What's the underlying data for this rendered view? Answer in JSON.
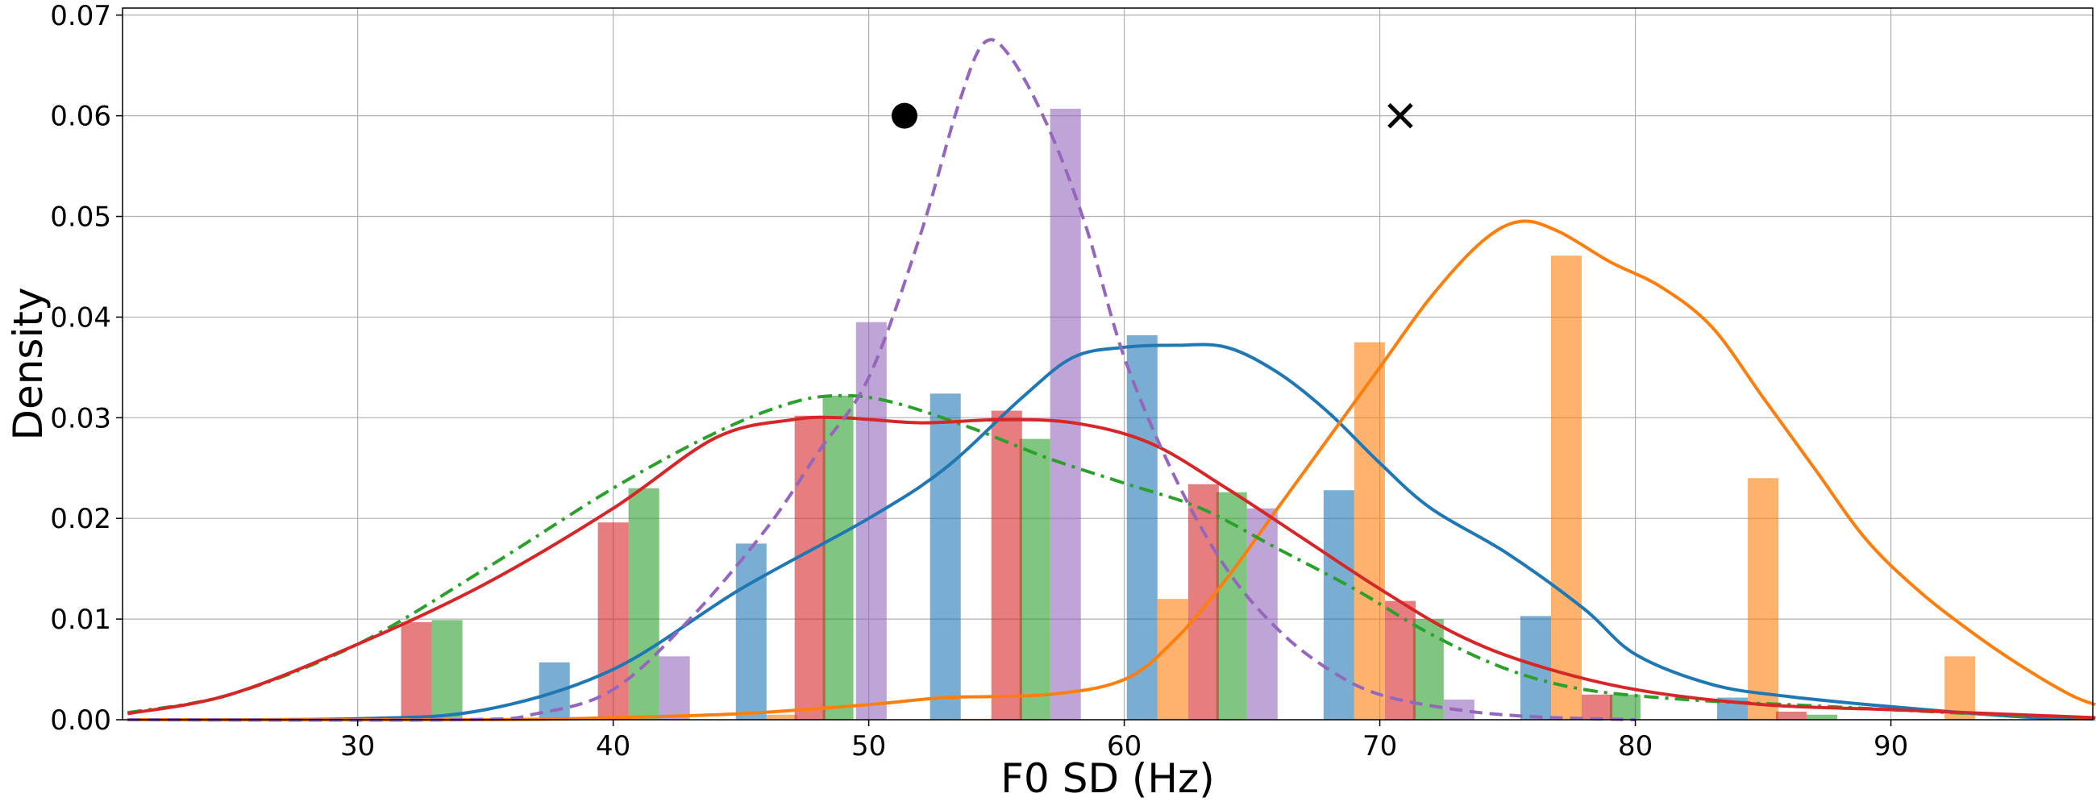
{
  "chart_data": {
    "type": "histogram+kde",
    "title": "",
    "xlabel": "F0 SD (Hz)",
    "ylabel": "Density",
    "xlim": [
      20.8,
      97.9
    ],
    "ylim": [
      0,
      0.0707
    ],
    "xticks": [
      30,
      40,
      50,
      60,
      70,
      80,
      90
    ],
    "yticks": [
      0.0,
      0.01,
      0.02,
      0.03,
      0.04,
      0.05,
      0.06,
      0.07
    ],
    "ytick_labels": [
      "0.00",
      "0.01",
      "0.02",
      "0.03",
      "0.04",
      "0.05",
      "0.06",
      "0.07"
    ],
    "grid": true,
    "bar_width": 1.2,
    "series": [
      {
        "name": "series-blue",
        "color": "#1f77b4",
        "line_style": "solid",
        "bars": [
          [
            37.7,
            0.0057
          ],
          [
            45.4,
            0.0175
          ],
          [
            53.0,
            0.0324
          ],
          [
            60.7,
            0.0382
          ],
          [
            68.4,
            0.0228
          ],
          [
            76.1,
            0.0103
          ],
          [
            83.8,
            0.0022
          ]
        ],
        "kde": [
          [
            21,
            0.0
          ],
          [
            30,
            0.0001
          ],
          [
            35,
            0.001
          ],
          [
            40,
            0.005
          ],
          [
            45,
            0.013
          ],
          [
            50,
            0.02
          ],
          [
            53,
            0.025
          ],
          [
            56,
            0.032
          ],
          [
            58,
            0.036
          ],
          [
            60,
            0.037
          ],
          [
            62,
            0.0372
          ],
          [
            64,
            0.037
          ],
          [
            66,
            0.0345
          ],
          [
            68,
            0.0305
          ],
          [
            70,
            0.0255
          ],
          [
            72,
            0.021
          ],
          [
            75,
            0.0165
          ],
          [
            78,
            0.011
          ],
          [
            80,
            0.0065
          ],
          [
            83,
            0.0035
          ],
          [
            86,
            0.0023
          ],
          [
            90,
            0.0013
          ],
          [
            95,
            0.0003
          ],
          [
            98,
            0.0001
          ]
        ]
      },
      {
        "name": "series-orange",
        "color": "#ff7f0e",
        "line_style": "solid",
        "bars": [
          [
            38.9,
            0.0002
          ],
          [
            46.6,
            0.0005
          ],
          [
            54.2,
            0.0001
          ],
          [
            61.9,
            0.012
          ],
          [
            69.6,
            0.0375
          ],
          [
            77.3,
            0.0461
          ],
          [
            85.0,
            0.024
          ],
          [
            92.7,
            0.0063
          ]
        ],
        "kde": [
          [
            21,
            0.0
          ],
          [
            35,
            0.0
          ],
          [
            40,
            0.0002
          ],
          [
            45,
            0.0006
          ],
          [
            50,
            0.0015
          ],
          [
            53,
            0.0022
          ],
          [
            57,
            0.0025
          ],
          [
            60,
            0.004
          ],
          [
            62,
            0.008
          ],
          [
            64,
            0.014
          ],
          [
            66,
            0.021
          ],
          [
            68,
            0.028
          ],
          [
            70,
            0.035
          ],
          [
            72,
            0.042
          ],
          [
            74,
            0.0475
          ],
          [
            75.5,
            0.0495
          ],
          [
            77,
            0.0485
          ],
          [
            79,
            0.0455
          ],
          [
            81,
            0.043
          ],
          [
            83,
            0.039
          ],
          [
            85,
            0.032
          ],
          [
            87,
            0.025
          ],
          [
            89,
            0.018
          ],
          [
            91,
            0.013
          ],
          [
            93,
            0.009
          ],
          [
            95,
            0.0055
          ],
          [
            97,
            0.0025
          ],
          [
            98,
            0.0015
          ]
        ]
      },
      {
        "name": "series-green",
        "color": "#2ca02c",
        "line_style": "dashdot",
        "bars": [
          [
            33.5,
            0.0099
          ],
          [
            41.2,
            0.023
          ],
          [
            48.8,
            0.0322
          ],
          [
            56.5,
            0.0279
          ],
          [
            64.2,
            0.0226
          ],
          [
            71.9,
            0.01
          ],
          [
            79.6,
            0.0025
          ],
          [
            87.3,
            0.0005
          ]
        ],
        "kde": [
          [
            21,
            0.0007
          ],
          [
            25,
            0.0025
          ],
          [
            30,
            0.0075
          ],
          [
            35,
            0.015
          ],
          [
            40,
            0.023
          ],
          [
            44,
            0.0285
          ],
          [
            47,
            0.0315
          ],
          [
            49,
            0.0322
          ],
          [
            51,
            0.0315
          ],
          [
            54,
            0.029
          ],
          [
            57,
            0.026
          ],
          [
            60,
            0.0235
          ],
          [
            63,
            0.021
          ],
          [
            66,
            0.017
          ],
          [
            69,
            0.013
          ],
          [
            72,
            0.0085
          ],
          [
            75,
            0.005
          ],
          [
            78,
            0.003
          ],
          [
            82,
            0.002
          ],
          [
            86,
            0.0015
          ],
          [
            90,
            0.001
          ],
          [
            95,
            0.0004
          ],
          [
            98,
            0.0002
          ]
        ]
      },
      {
        "name": "series-red",
        "color": "#d62728",
        "line_style": "solid",
        "bars": [
          [
            32.3,
            0.0097
          ],
          [
            40.0,
            0.0196
          ],
          [
            47.7,
            0.0302
          ],
          [
            55.4,
            0.0307
          ],
          [
            63.1,
            0.0234
          ],
          [
            70.8,
            0.0118
          ],
          [
            78.5,
            0.0025
          ],
          [
            86.1,
            0.0008
          ]
        ],
        "kde": [
          [
            21,
            0.0006
          ],
          [
            25,
            0.0025
          ],
          [
            30,
            0.0075
          ],
          [
            35,
            0.0135
          ],
          [
            40,
            0.021
          ],
          [
            44,
            0.028
          ],
          [
            47,
            0.0298
          ],
          [
            49,
            0.03
          ],
          [
            52,
            0.0295
          ],
          [
            55,
            0.0298
          ],
          [
            58,
            0.0295
          ],
          [
            61,
            0.0275
          ],
          [
            64,
            0.023
          ],
          [
            67,
            0.018
          ],
          [
            70,
            0.013
          ],
          [
            73,
            0.0085
          ],
          [
            76,
            0.0055
          ],
          [
            80,
            0.003
          ],
          [
            85,
            0.0015
          ],
          [
            90,
            0.001
          ],
          [
            95,
            0.0005
          ],
          [
            98,
            0.0002
          ]
        ]
      },
      {
        "name": "series-purple",
        "color": "#9467bd",
        "line_style": "dashed",
        "bars": [
          [
            42.4,
            0.0063
          ],
          [
            50.1,
            0.0395
          ],
          [
            57.7,
            0.0607
          ],
          [
            65.4,
            0.021
          ],
          [
            73.1,
            0.002
          ]
        ],
        "kde": [
          [
            21,
            0.0
          ],
          [
            34,
            0.0
          ],
          [
            37,
            0.0006
          ],
          [
            40,
            0.003
          ],
          [
            43,
            0.01
          ],
          [
            46,
            0.019
          ],
          [
            48,
            0.0265
          ],
          [
            50,
            0.034
          ],
          [
            52,
            0.048
          ],
          [
            53.5,
            0.061
          ],
          [
            54.5,
            0.0672
          ],
          [
            55.5,
            0.066
          ],
          [
            57,
            0.059
          ],
          [
            58.5,
            0.049
          ],
          [
            60,
            0.036
          ],
          [
            62,
            0.024
          ],
          [
            64,
            0.015
          ],
          [
            66,
            0.009
          ],
          [
            68,
            0.005
          ],
          [
            70,
            0.0025
          ],
          [
            73,
            0.001
          ],
          [
            76,
            0.0003
          ],
          [
            80,
            0.0
          ]
        ]
      }
    ],
    "markers": [
      {
        "name": "circle-marker",
        "shape": "circle",
        "x": 51.4,
        "y": 0.06,
        "color": "#000000"
      },
      {
        "name": "x-marker",
        "shape": "x",
        "x": 70.8,
        "y": 0.06,
        "color": "#000000"
      }
    ]
  }
}
